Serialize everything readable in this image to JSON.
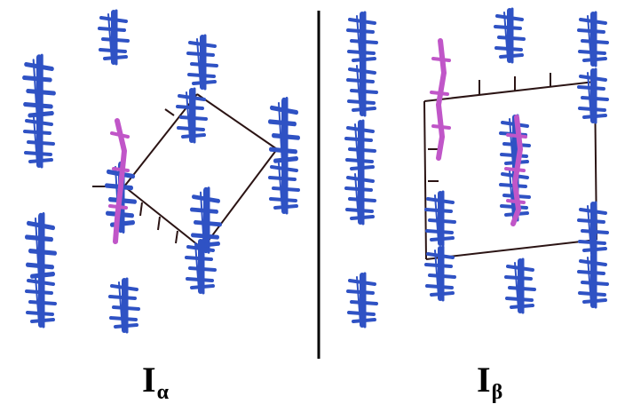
{
  "labels": {
    "left": {
      "main": "I",
      "sub": "α"
    },
    "right": {
      "main": "I",
      "sub": "β"
    }
  },
  "colors": {
    "chain_primary": "#2f52c4",
    "chain_secondary": "#4d7fe0",
    "chain_highlight": "#c056c8",
    "cell_line": "#2b1414",
    "divider": "#000000",
    "background": "#ffffff"
  },
  "panels": {
    "alpha": {
      "name": "I-alpha",
      "cell": "rhombic-unit-cell"
    },
    "beta": {
      "name": "I-beta",
      "cell": "rectangular-unit-cell"
    }
  }
}
